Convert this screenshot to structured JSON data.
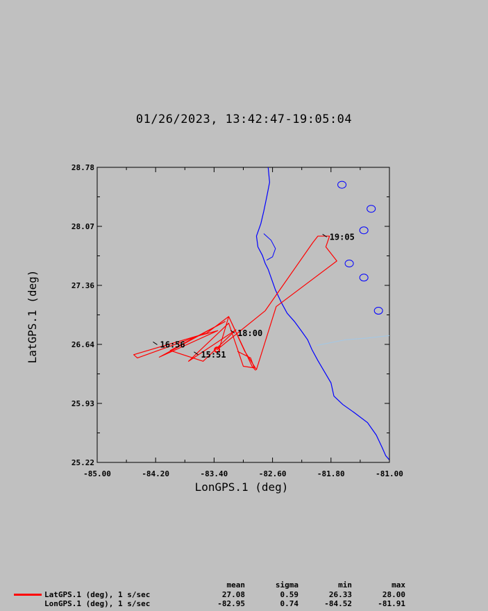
{
  "title": "01/26/2023, 13:42:47-19:05:04",
  "chart_data": {
    "type": "line",
    "xlabel": "LonGPS.1 (deg)",
    "ylabel": "LatGPS.1 (deg)",
    "xlim": [
      -85.0,
      -81.0
    ],
    "ylim": [
      25.22,
      28.78
    ],
    "x_ticks": [
      "-85.00",
      "-84.20",
      "-83.40",
      "-82.60",
      "-81.80",
      "-81.00"
    ],
    "y_ticks": [
      "28.78",
      "28.07",
      "27.36",
      "26.64",
      "25.93",
      "25.22"
    ],
    "series": [
      {
        "name": "LatGPS.1 (deg), 1 s/sec",
        "color": "#ff0000",
        "points": [
          [
            -82.83,
            26.33
          ],
          [
            -82.88,
            26.38
          ],
          [
            -83.2,
            26.98
          ],
          [
            -83.32,
            26.62
          ],
          [
            -83.36,
            26.58
          ],
          [
            -82.7,
            27.05
          ],
          [
            -82.05,
            27.87
          ],
          [
            -81.98,
            27.95
          ],
          [
            -81.82,
            27.95
          ],
          [
            -81.87,
            27.82
          ],
          [
            -81.72,
            27.65
          ],
          [
            -82.55,
            27.1
          ],
          [
            -82.82,
            26.34
          ],
          [
            -82.98,
            26.56
          ],
          [
            -83.2,
            26.98
          ],
          [
            -83.5,
            26.78
          ],
          [
            -84.5,
            26.52
          ],
          [
            -84.45,
            26.48
          ],
          [
            -83.6,
            26.75
          ],
          [
            -83.35,
            26.81
          ],
          [
            -84.15,
            26.49
          ],
          [
            -83.25,
            26.92
          ],
          [
            -84.0,
            26.57
          ],
          [
            -83.55,
            26.44
          ],
          [
            -83.1,
            26.82
          ],
          [
            -83.75,
            26.44
          ],
          [
            -83.2,
            26.9
          ],
          [
            -83.0,
            26.38
          ],
          [
            -82.85,
            26.36
          ],
          [
            -82.9,
            26.48
          ],
          [
            -83.08,
            26.56
          ]
        ]
      }
    ],
    "time_labels": [
      {
        "text": "19:05",
        "lon": -81.82,
        "lat": 27.94
      },
      {
        "text": "18:00",
        "lon": -83.08,
        "lat": 26.78
      },
      {
        "text": "16:56",
        "lon": -84.14,
        "lat": 26.64
      },
      {
        "text": "15:51",
        "lon": -83.58,
        "lat": 26.52
      }
    ],
    "coastline_color": "#0000ff",
    "rivers_color": "#a0c8e8"
  },
  "stats": {
    "headers": [
      "mean",
      "sigma",
      "min",
      "max"
    ],
    "rows": [
      {
        "label": "LatGPS.1 (deg), 1 s/sec",
        "mean": "27.08",
        "sigma": "0.59",
        "min": "26.33",
        "max": "28.00"
      },
      {
        "label": "LonGPS.1 (deg), 1 s/sec",
        "mean": "-82.95",
        "sigma": "0.74",
        "min": "-84.52",
        "max": "-81.91"
      }
    ]
  }
}
